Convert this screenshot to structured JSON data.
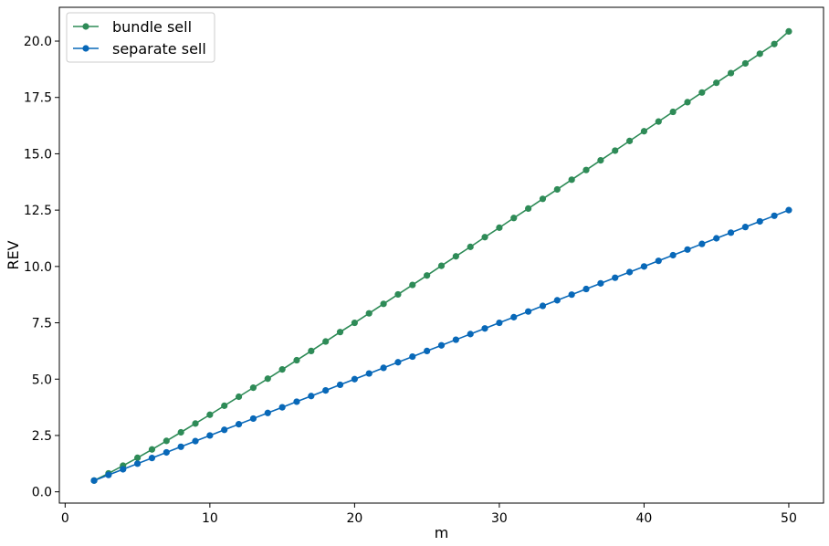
{
  "chart_data": {
    "type": "line",
    "xlabel": "m",
    "ylabel": "REV",
    "xlim": [
      -0.4,
      52.4
    ],
    "ylim": [
      -0.5,
      21.5
    ],
    "xticks": [
      0,
      10,
      20,
      30,
      40,
      50
    ],
    "yticks": [
      0.0,
      2.5,
      5.0,
      7.5,
      10.0,
      12.5,
      15.0,
      17.5,
      20.0
    ],
    "xtick_labels": [
      "0",
      "10",
      "20",
      "30",
      "40",
      "50"
    ],
    "ytick_labels": [
      "0.0",
      "2.5",
      "5.0",
      "7.5",
      "10.0",
      "12.5",
      "15.0",
      "17.5",
      "20.0"
    ],
    "legend_position": "top-left",
    "grid": false,
    "x": [
      2,
      3,
      4,
      5,
      6,
      7,
      8,
      9,
      10,
      11,
      12,
      13,
      14,
      15,
      16,
      17,
      18,
      19,
      20,
      21,
      22,
      23,
      24,
      25,
      26,
      27,
      28,
      29,
      30,
      31,
      32,
      33,
      34,
      35,
      36,
      37,
      38,
      39,
      40,
      41,
      42,
      43,
      44,
      45,
      46,
      47,
      48,
      49,
      50
    ],
    "series": [
      {
        "name": "bundle sell",
        "color": "#2e8b57",
        "values": [
          0.5,
          0.82,
          1.16,
          1.51,
          1.88,
          2.26,
          2.64,
          3.03,
          3.42,
          3.82,
          4.22,
          4.62,
          5.02,
          5.43,
          5.84,
          6.25,
          6.67,
          7.09,
          7.5,
          7.92,
          8.34,
          8.76,
          9.18,
          9.6,
          10.03,
          10.45,
          10.87,
          11.3,
          11.72,
          12.15,
          12.57,
          13.0,
          13.42,
          13.85,
          14.28,
          14.71,
          15.14,
          15.57,
          16.0,
          16.43,
          16.86,
          17.29,
          17.72,
          18.15,
          18.58,
          19.01,
          19.44,
          19.87,
          20.43
        ]
      },
      {
        "name": "separate sell",
        "color": "#0868b8",
        "values": [
          0.5,
          0.75,
          1.0,
          1.25,
          1.5,
          1.75,
          2.0,
          2.25,
          2.5,
          2.75,
          3.0,
          3.25,
          3.5,
          3.75,
          4.0,
          4.25,
          4.5,
          4.75,
          5.0,
          5.25,
          5.5,
          5.75,
          6.0,
          6.25,
          6.5,
          6.75,
          7.0,
          7.25,
          7.5,
          7.75,
          8.0,
          8.25,
          8.5,
          8.75,
          9.0,
          9.25,
          9.5,
          9.75,
          10.0,
          10.25,
          10.5,
          10.75,
          11.0,
          11.25,
          11.5,
          11.75,
          12.0,
          12.25,
          12.5
        ]
      }
    ]
  }
}
